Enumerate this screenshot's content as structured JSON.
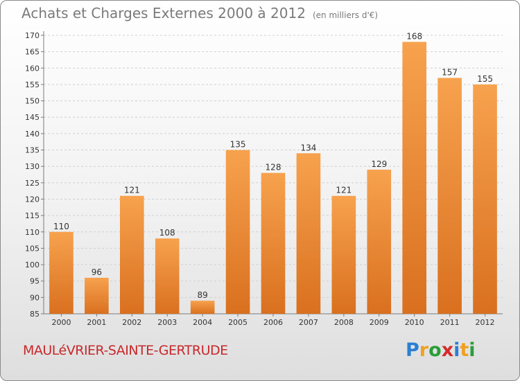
{
  "title": "Achats et Charges Externes 2000 à 2012",
  "subtitle": "(en milliers d'€)",
  "location": "MAULéVRIER-SAINTE-GERTRUDE",
  "logo": {
    "letters": [
      "P",
      "r",
      "o",
      "x",
      "i",
      "t",
      "i"
    ],
    "colors": [
      "#2a7fd4",
      "#f0a020",
      "#2a9d3a",
      "#d42a2a",
      "#2a7fd4",
      "#f0a020",
      "#2a9d3a"
    ]
  },
  "colors": {
    "bar_top": "#f7a24e",
    "bar_bottom": "#d9701f",
    "axis": "#7a7a7a",
    "grid": "#cfcfcf",
    "text": "#333333"
  },
  "chart_data": {
    "type": "bar",
    "categories": [
      "2000",
      "2001",
      "2002",
      "2003",
      "2004",
      "2005",
      "2006",
      "2007",
      "2008",
      "2009",
      "2010",
      "2011",
      "2012"
    ],
    "values": [
      110,
      96,
      121,
      108,
      89,
      135,
      128,
      134,
      121,
      129,
      168,
      157,
      155
    ],
    "yticks": [
      85,
      90,
      95,
      100,
      105,
      110,
      115,
      120,
      125,
      130,
      135,
      140,
      145,
      150,
      155,
      160,
      165,
      170
    ],
    "ylim": [
      85,
      170
    ],
    "grid": true,
    "legend": "none"
  }
}
